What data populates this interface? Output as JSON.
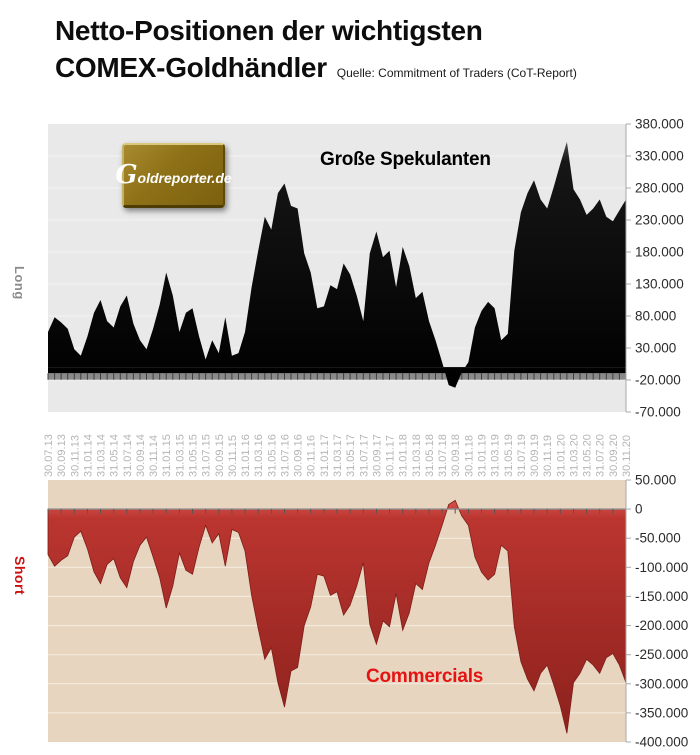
{
  "header": {
    "title_line1": "Netto-Positionen der wichtigsten",
    "title_line2": "COMEX-Goldhändler",
    "source": "Quelle: Commitment of Traders (CoT-Report)"
  },
  "logo": {
    "text": "Goldreporter.de"
  },
  "colors": {
    "long_label": "#8c8c8c",
    "short_label": "#cc1111",
    "commercials_title": "#e41414",
    "speculators_title": "#000000"
  },
  "chart_data": [
    {
      "type": "area",
      "name": "large-speculators",
      "title": "Große Spekulanten",
      "side_label": "Long",
      "ylim": [
        -70000,
        380000
      ],
      "y_step": 50000,
      "grid": true,
      "legend_position": "none",
      "categories": [
        "30.07.13",
        "30.09.13",
        "30.11.13",
        "31.01.14",
        "31.03.14",
        "31.05.14",
        "31.07.14",
        "30.09.14",
        "30.11.14",
        "31.01.15",
        "31.03.15",
        "31.05.15",
        "31.07.15",
        "30.09.15",
        "30.11.15",
        "31.01.16",
        "31.03.16",
        "31.05.16",
        "31.07.16",
        "30.09.16",
        "30.11.16",
        "31.01.17",
        "31.03.17",
        "31.05.17",
        "31.07.17",
        "30.09.17",
        "30.11.17",
        "31.01.18",
        "31.03.18",
        "31.05.18",
        "31.07.18",
        "30.09.18",
        "30.11.18",
        "31.01.19",
        "31.03.19",
        "31.05.19",
        "31.07.19",
        "30.09.19",
        "30.11.19",
        "31.01.20",
        "31.03.20",
        "31.05.20",
        "31.07.20",
        "30.09.20",
        "30.11.20"
      ],
      "values_note": "net long positions, estimated monthly Jul 2013 - Nov 2020",
      "values": [
        55000,
        78000,
        70000,
        60000,
        28000,
        18000,
        48000,
        85000,
        105000,
        72000,
        62000,
        95000,
        112000,
        68000,
        42000,
        28000,
        60000,
        98000,
        148000,
        112000,
        55000,
        85000,
        92000,
        48000,
        12000,
        42000,
        22000,
        78000,
        18000,
        22000,
        55000,
        125000,
        182000,
        235000,
        215000,
        272000,
        287000,
        252000,
        248000,
        178000,
        148000,
        92000,
        95000,
        128000,
        122000,
        162000,
        145000,
        112000,
        72000,
        178000,
        212000,
        172000,
        182000,
        125000,
        188000,
        158000,
        108000,
        118000,
        72000,
        42000,
        8000,
        -28000,
        -32000,
        -8000,
        8000,
        62000,
        88000,
        102000,
        92000,
        42000,
        52000,
        182000,
        242000,
        272000,
        292000,
        262000,
        248000,
        282000,
        318000,
        352000,
        278000,
        262000,
        238000,
        248000,
        262000,
        235000,
        228000,
        245000,
        262000
      ],
      "colors": {
        "plot_bg": "#e9e9e9",
        "grid": "#f3f3f3",
        "fill_top": "#4a4a4a",
        "fill_mid": "#161616",
        "fill_deep": "#000000",
        "axis_band": "#8a8a8a",
        "band_tick": "#3f3f3f",
        "axis": "#a8a8a8",
        "y_label": "#2b2b2b",
        "x_label": "#b5b5b5"
      }
    },
    {
      "type": "area",
      "name": "commercials",
      "title": "Commercials",
      "side_label": "Short",
      "ylim": [
        -400000,
        50000
      ],
      "y_step": 50000,
      "grid": true,
      "legend_position": "none",
      "values_note": "net short positions, estimated monthly Jul 2013 - Nov 2020, same date axis as speculators chart",
      "values": [
        -78000,
        -98000,
        -88000,
        -80000,
        -48000,
        -38000,
        -68000,
        -108000,
        -128000,
        -95000,
        -85000,
        -118000,
        -135000,
        -90000,
        -62000,
        -48000,
        -82000,
        -118000,
        -170000,
        -132000,
        -75000,
        -105000,
        -112000,
        -65000,
        -28000,
        -58000,
        -42000,
        -98000,
        -35000,
        -40000,
        -72000,
        -148000,
        -205000,
        -258000,
        -238000,
        -298000,
        -340000,
        -278000,
        -272000,
        -200000,
        -168000,
        -112000,
        -115000,
        -148000,
        -142000,
        -182000,
        -165000,
        -132000,
        -92000,
        -198000,
        -232000,
        -192000,
        -202000,
        -145000,
        -208000,
        -178000,
        -128000,
        -138000,
        -92000,
        -62000,
        -28000,
        8000,
        15000,
        -12000,
        -28000,
        -82000,
        -108000,
        -122000,
        -112000,
        -62000,
        -72000,
        -202000,
        -262000,
        -292000,
        -312000,
        -282000,
        -268000,
        -302000,
        -338000,
        -385000,
        -298000,
        -282000,
        -258000,
        -268000,
        -282000,
        -255000,
        -248000,
        -268000,
        -298000
      ],
      "colors": {
        "plot_bg": "#e7d5c0",
        "grid": "#f6eee1",
        "fill_top": "#d4524a",
        "fill_mid": "#bb3530",
        "fill_deep": "#8c211c",
        "stroke": "#7e1d18",
        "zero_line": "#8f8f8f",
        "zero_tick": "#555555",
        "axis": "#a8a8a8",
        "y_label": "#2b2b2b"
      }
    }
  ]
}
